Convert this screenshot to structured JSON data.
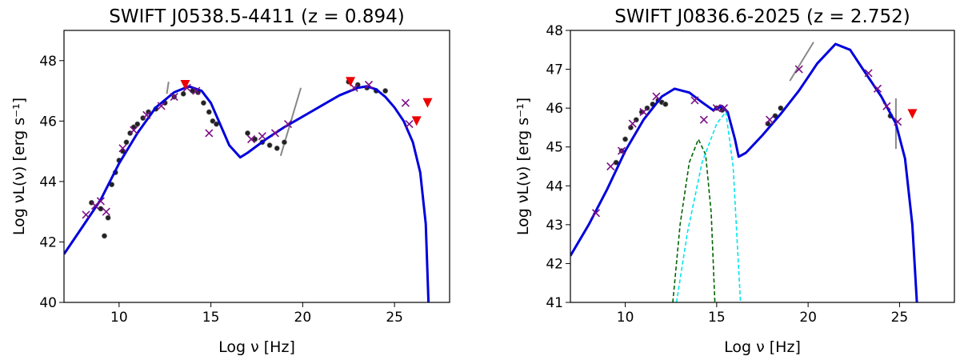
{
  "chart_data": [
    {
      "type": "scatter",
      "title": "SWIFT J0538.5-4411 (z = 0.894)",
      "xlabel": "Log ν [Hz]",
      "ylabel": "Log νL(ν) [erg s⁻¹]",
      "xlim": [
        7,
        28
      ],
      "ylim": [
        40,
        49
      ],
      "xticks": [
        "10",
        "15",
        "20",
        "25"
      ],
      "xtick_values": [
        10,
        15,
        20,
        25
      ],
      "yticks": [
        "40",
        "42",
        "44",
        "46",
        "48"
      ],
      "ytick_values": [
        40,
        42,
        44,
        46,
        48
      ],
      "colors": {
        "model": "#0000dd",
        "archival": "#222222",
        "sim": "#7b0f86",
        "upper_limit": "#ee0000",
        "bowtie": "#888888"
      },
      "model_curve": [
        [
          7,
          41.6
        ],
        [
          8,
          42.5
        ],
        [
          9,
          43.4
        ],
        [
          10,
          44.6
        ],
        [
          11,
          45.6
        ],
        [
          12,
          46.45
        ],
        [
          13,
          46.95
        ],
        [
          13.8,
          47.15
        ],
        [
          14.5,
          47.0
        ],
        [
          15,
          46.6
        ],
        [
          15.5,
          45.9
        ],
        [
          16,
          45.2
        ],
        [
          16.6,
          44.8
        ],
        [
          17,
          44.95
        ],
        [
          18,
          45.4
        ],
        [
          19,
          45.8
        ],
        [
          20,
          46.15
        ],
        [
          21,
          46.5
        ],
        [
          22,
          46.85
        ],
        [
          23,
          47.1
        ],
        [
          23.5,
          47.15
        ],
        [
          24,
          47.05
        ],
        [
          24.5,
          46.8
        ],
        [
          25,
          46.45
        ],
        [
          25.5,
          46.0
        ],
        [
          26,
          45.3
        ],
        [
          26.4,
          44.3
        ],
        [
          26.7,
          42.6
        ],
        [
          26.85,
          40.0
        ]
      ],
      "archival_points": [
        [
          8.5,
          43.3
        ],
        [
          9.0,
          43.1
        ],
        [
          9.2,
          42.2
        ],
        [
          9.4,
          42.8
        ],
        [
          9.6,
          43.9
        ],
        [
          9.8,
          44.3
        ],
        [
          10,
          44.7
        ],
        [
          10.2,
          45.0
        ],
        [
          10.4,
          45.3
        ],
        [
          10.6,
          45.6
        ],
        [
          10.8,
          45.8
        ],
        [
          11,
          45.9
        ],
        [
          11.3,
          46.1
        ],
        [
          11.6,
          46.3
        ],
        [
          12,
          46.4
        ],
        [
          12.5,
          46.6
        ],
        [
          13,
          46.8
        ],
        [
          13.5,
          46.9
        ],
        [
          14,
          47.0
        ],
        [
          14.3,
          46.95
        ],
        [
          14.6,
          46.6
        ],
        [
          14.9,
          46.3
        ],
        [
          15.1,
          46.0
        ],
        [
          15.3,
          45.9
        ],
        [
          17,
          45.6
        ],
        [
          17.4,
          45.4
        ],
        [
          17.8,
          45.3
        ],
        [
          18.2,
          45.2
        ],
        [
          18.6,
          45.1
        ],
        [
          19,
          45.3
        ],
        [
          22.5,
          47.3
        ],
        [
          23,
          47.2
        ],
        [
          23.5,
          47.1
        ],
        [
          24,
          47.0
        ],
        [
          24.5,
          47.0
        ]
      ],
      "sim_points": [
        [
          8.2,
          42.9
        ],
        [
          8.7,
          43.2
        ],
        [
          9.0,
          43.35
        ],
        [
          9.3,
          43.0
        ],
        [
          10.2,
          45.1
        ],
        [
          10.8,
          45.7
        ],
        [
          11.5,
          46.2
        ],
        [
          12.3,
          46.5
        ],
        [
          13.0,
          46.8
        ],
        [
          13.7,
          47.1
        ],
        [
          14.2,
          47.0
        ],
        [
          14.9,
          45.6
        ],
        [
          17.2,
          45.4
        ],
        [
          17.8,
          45.5
        ],
        [
          18.5,
          45.6
        ],
        [
          19.2,
          45.9
        ],
        [
          22.8,
          47.1
        ],
        [
          23.6,
          47.2
        ],
        [
          25.6,
          46.6
        ],
        [
          25.8,
          45.9
        ]
      ],
      "upper_limits": [
        [
          13.6,
          47.2
        ],
        [
          22.6,
          47.3
        ],
        [
          26.2,
          46.0
        ],
        [
          26.8,
          46.6
        ]
      ],
      "bowties": [
        [
          [
            12.6,
            46.9
          ],
          [
            12.7,
            47.3
          ]
        ],
        [
          [
            18.8,
            44.85
          ],
          [
            19.9,
            47.1
          ]
        ]
      ]
    },
    {
      "type": "scatter",
      "title": "SWIFT J0836.6-2025 (z = 2.752)",
      "xlabel": "Log ν [Hz]",
      "ylabel": "Log νL(ν) [erg s⁻¹]",
      "xlim": [
        7,
        28
      ],
      "ylim": [
        41,
        48
      ],
      "xticks": [
        "10",
        "15",
        "20",
        "25"
      ],
      "xtick_values": [
        10,
        15,
        20,
        25
      ],
      "yticks": [
        "41",
        "42",
        "43",
        "44",
        "45",
        "46",
        "47",
        "48"
      ],
      "ytick_values": [
        41,
        42,
        43,
        44,
        45,
        46,
        47,
        48
      ],
      "colors": {
        "model": "#0000dd",
        "archival": "#222222",
        "sim": "#7b0f86",
        "upper_limit": "#ee0000",
        "bowtie": "#888888",
        "torus": "#006400",
        "disk": "#00e5ee"
      },
      "model_curve": [
        [
          7,
          42.2
        ],
        [
          8,
          43.0
        ],
        [
          9,
          43.9
        ],
        [
          10,
          44.9
        ],
        [
          11,
          45.7
        ],
        [
          12,
          46.3
        ],
        [
          12.7,
          46.5
        ],
        [
          13.5,
          46.4
        ],
        [
          14.2,
          46.15
        ],
        [
          14.8,
          45.95
        ],
        [
          15.3,
          46.05
        ],
        [
          15.6,
          45.9
        ],
        [
          16.0,
          45.2
        ],
        [
          16.2,
          44.75
        ],
        [
          16.6,
          44.85
        ],
        [
          17.5,
          45.3
        ],
        [
          18.5,
          45.85
        ],
        [
          19.5,
          46.45
        ],
        [
          20.5,
          47.15
        ],
        [
          21.5,
          47.65
        ],
        [
          22.3,
          47.5
        ],
        [
          23,
          47.0
        ],
        [
          24,
          46.3
        ],
        [
          24.8,
          45.6
        ],
        [
          25.3,
          44.7
        ],
        [
          25.7,
          43.0
        ],
        [
          25.95,
          41.0
        ]
      ],
      "torus_curve": [
        [
          12.6,
          41.0
        ],
        [
          13.0,
          43.0
        ],
        [
          13.5,
          44.6
        ],
        [
          14.0,
          45.2
        ],
        [
          14.4,
          44.8
        ],
        [
          14.7,
          43.3
        ],
        [
          14.9,
          41.0
        ]
      ],
      "disk_curve": [
        [
          12.8,
          41.0
        ],
        [
          13.4,
          42.8
        ],
        [
          14.2,
          44.6
        ],
        [
          15.0,
          45.6
        ],
        [
          15.5,
          45.9
        ],
        [
          15.9,
          44.5
        ],
        [
          16.3,
          41.0
        ]
      ],
      "archival_points": [
        [
          9.5,
          44.6
        ],
        [
          9.8,
          44.9
        ],
        [
          10.0,
          45.2
        ],
        [
          10.3,
          45.5
        ],
        [
          10.6,
          45.7
        ],
        [
          10.9,
          45.9
        ],
        [
          11.2,
          46.0
        ],
        [
          11.5,
          46.1
        ],
        [
          11.8,
          46.2
        ],
        [
          12.0,
          46.15
        ],
        [
          12.2,
          46.1
        ],
        [
          15.0,
          46.0
        ],
        [
          15.3,
          45.95
        ],
        [
          17.8,
          45.6
        ],
        [
          18.2,
          45.8
        ],
        [
          18.5,
          46.0
        ],
        [
          24.5,
          45.8
        ]
      ],
      "sim_points": [
        [
          8.4,
          43.3
        ],
        [
          9.2,
          44.5
        ],
        [
          9.8,
          44.9
        ],
        [
          10.4,
          45.6
        ],
        [
          11.0,
          45.9
        ],
        [
          11.7,
          46.3
        ],
        [
          13.8,
          46.2
        ],
        [
          14.3,
          45.7
        ],
        [
          15.0,
          46.0
        ],
        [
          15.4,
          46.0
        ],
        [
          17.9,
          45.7
        ],
        [
          19.5,
          47.0
        ],
        [
          23.3,
          46.9
        ],
        [
          23.8,
          46.5
        ],
        [
          24.3,
          46.05
        ],
        [
          24.9,
          45.65
        ]
      ],
      "upper_limits": [
        [
          25.7,
          45.85
        ]
      ],
      "bowties": [
        [
          [
            19.0,
            46.7
          ],
          [
            20.3,
            47.7
          ]
        ],
        [
          [
            24.8,
            44.95
          ],
          [
            24.8,
            46.25
          ]
        ]
      ]
    }
  ]
}
